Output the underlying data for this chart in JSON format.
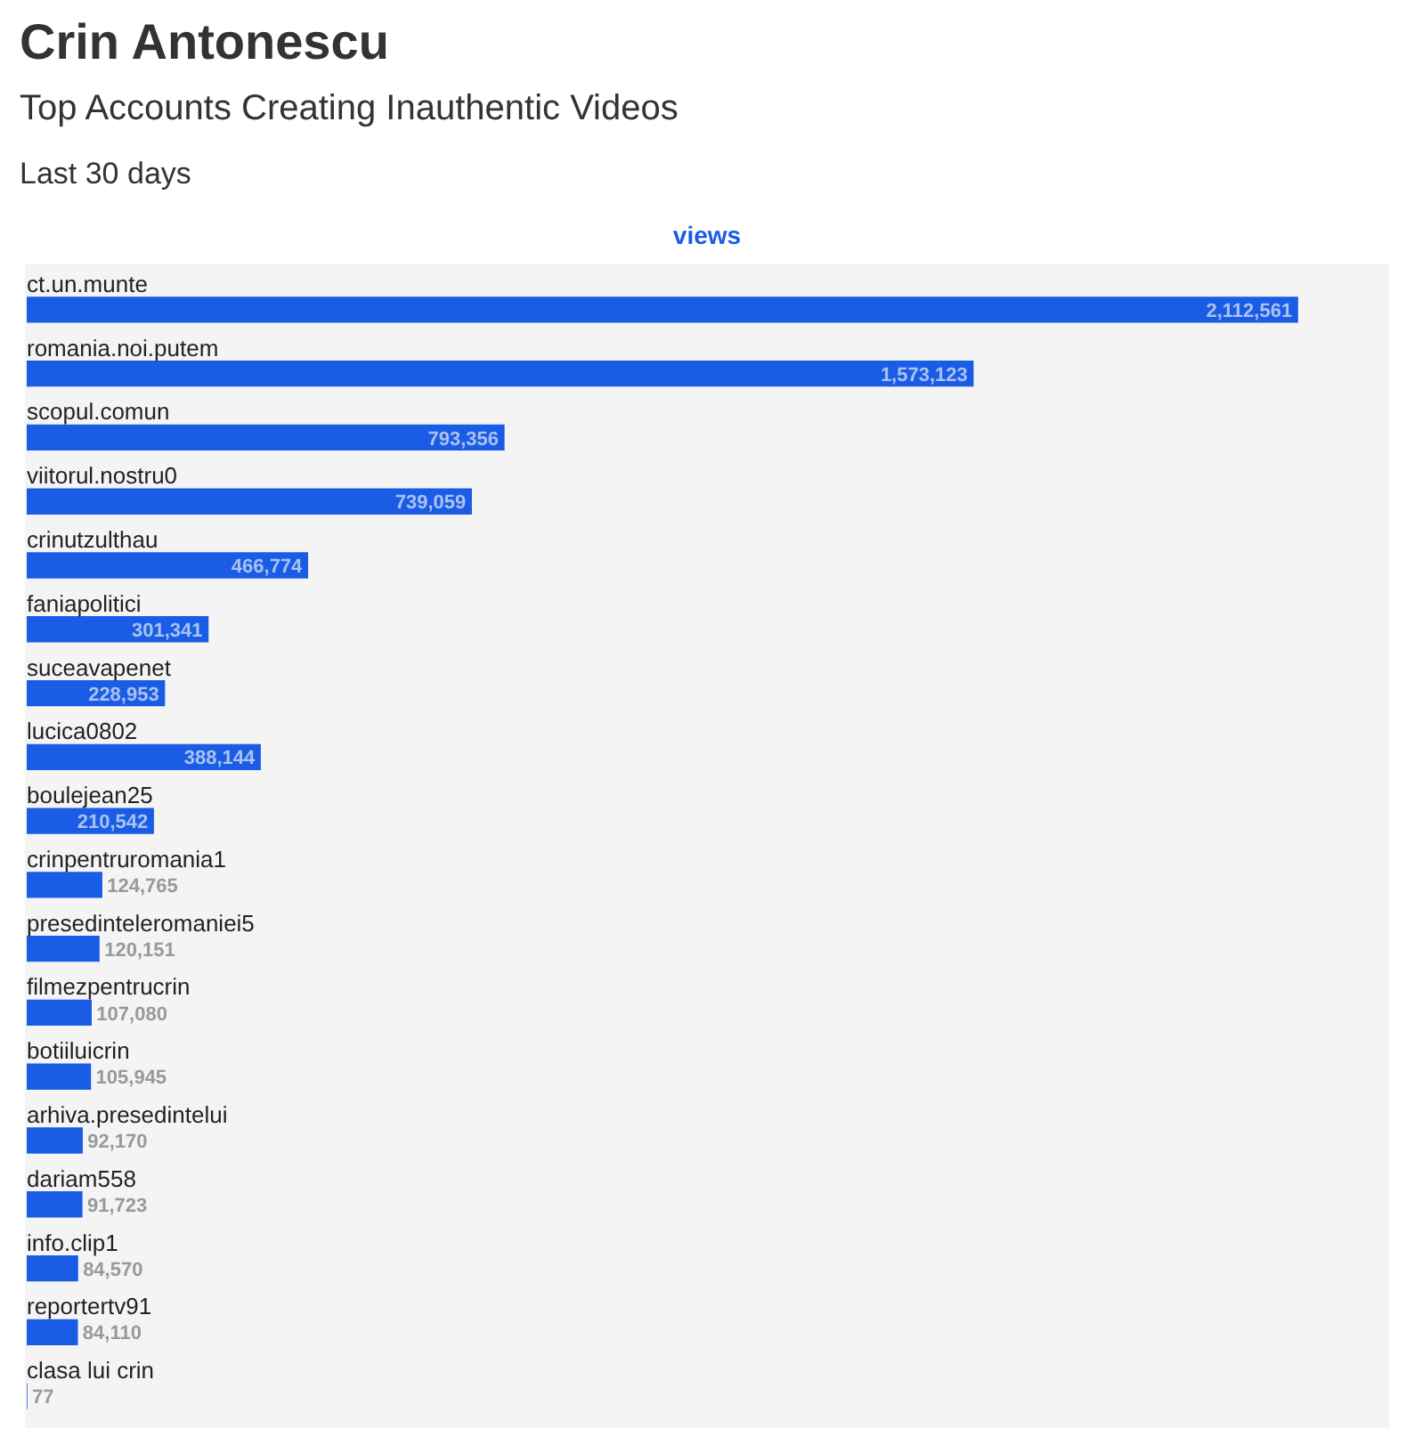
{
  "chart_data": {
    "type": "bar",
    "orientation": "horizontal",
    "title": "Crin Antonescu",
    "subtitle": "Top Accounts Creating Inauthentic Videos",
    "annotations": [
      "Last 30 days"
    ],
    "xlabel": "views",
    "categories": [
      "ct.un.munte",
      "romania.noi.putem",
      "scopul.comun",
      "viitorul.nostru0",
      "crinutzulthau",
      "faniapolitici",
      "suceavapenet",
      "lucica0802",
      "boulejean25",
      "crinpentruromania1",
      "presedinteleromaniei5",
      "filmezpentrucrin",
      "botiiluicrin",
      "arhiva.presedintelui",
      "dariam558",
      "info.clip1",
      "reportertv91",
      "clasa lui crin"
    ],
    "values": [
      2112561,
      1573123,
      793356,
      739059,
      466774,
      301341,
      228953,
      388144,
      210542,
      124765,
      120151,
      107080,
      105945,
      92170,
      91723,
      84570,
      84110,
      77
    ],
    "value_labels": [
      "2,112,561",
      "1,573,123",
      "793,356",
      "739,059",
      "466,774",
      "301,341",
      "228,953",
      "388,144",
      "210,542",
      "124,765",
      "120,151",
      "107,080",
      "105,945",
      "92,170",
      "91,723",
      "84,570",
      "84,110",
      "77"
    ],
    "color": "#1a5ce6",
    "legend": false
  }
}
